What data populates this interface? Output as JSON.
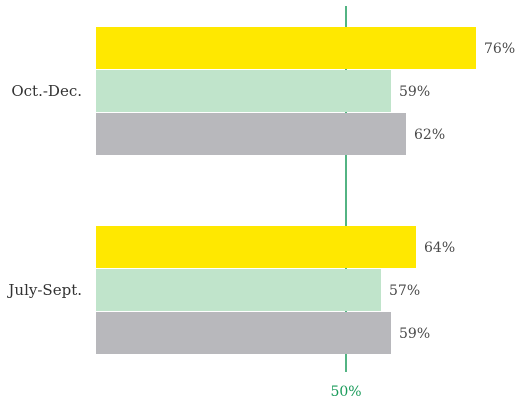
{
  "chart_data": {
    "type": "bar",
    "orientation": "horizontal",
    "categories": [
      "Oct.-Dec.",
      "July-Sept."
    ],
    "series": [
      {
        "values": [
          76,
          64
        ],
        "color": "#ffe800"
      },
      {
        "values": [
          59,
          57
        ],
        "color": "#c0e4cb"
      },
      {
        "values": [
          62,
          59
        ],
        "color": "#b8b8bc"
      }
    ],
    "value_suffix": "%",
    "reference_line": {
      "value": 50,
      "label": "50%",
      "color": "#1a9b5a"
    },
    "xlim": [
      0,
      76
    ],
    "grid": false,
    "legend": "none"
  }
}
